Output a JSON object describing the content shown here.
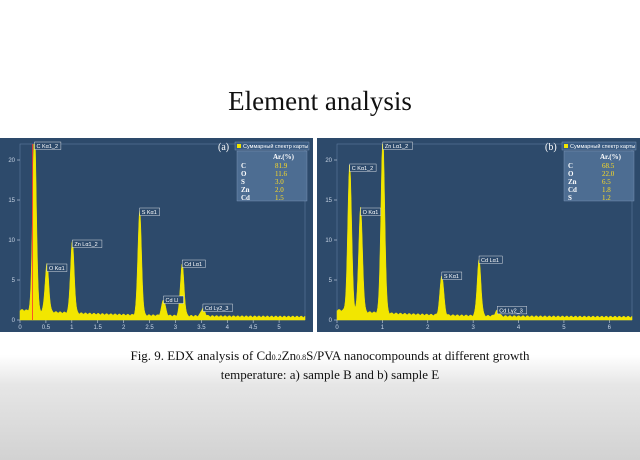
{
  "slide": {
    "title": "Element analysis",
    "caption_line1_pre": "Fig. 9. EDX analysis of Cd",
    "caption_sub1": "0.2",
    "caption_mid": "Zn",
    "caption_sub2": "0.8",
    "caption_line1_post": "S/PVA nanocompounds at different growth",
    "caption_line2": "temperature: a) sample B and b) sample E"
  },
  "chart_data": [
    {
      "type": "line",
      "panel_label": "(a)",
      "legend_title": "Суммарный спектр карты",
      "table_header": "Ar.(%)",
      "composition": [
        {
          "element": "C",
          "value": "81.9"
        },
        {
          "element": "O",
          "value": "11.6"
        },
        {
          "element": "S",
          "value": "3.0"
        },
        {
          "element": "Zn",
          "value": "2.0"
        },
        {
          "element": "Cd",
          "value": "1.5"
        }
      ],
      "xlim": [
        0,
        5.5
      ],
      "ylim": [
        0,
        22
      ],
      "x_ticks": [
        "0",
        "0.5",
        "1",
        "1.5",
        "2",
        "2.5",
        "3",
        "3.5",
        "4",
        "4.5",
        "5"
      ],
      "y_ticks": [
        "0",
        "5",
        "10",
        "15",
        "20"
      ],
      "peaks": [
        {
          "label": "C Kα1_2",
          "x": 0.28,
          "y": 23
        },
        {
          "label": "O Kα1",
          "x": 0.52,
          "y": 6
        },
        {
          "label": "Zn Lα1_2",
          "x": 1.01,
          "y": 9
        },
        {
          "label": "S Kα1",
          "x": 2.31,
          "y": 13
        },
        {
          "label": "Cd Lα1",
          "x": 3.13,
          "y": 6.5
        },
        {
          "label": "Cd Ll",
          "x": 2.77,
          "y": 2
        },
        {
          "label": "Cd Lγ2_3",
          "x": 3.53,
          "y": 1
        }
      ]
    },
    {
      "type": "line",
      "panel_label": "(b)",
      "legend_title": "Суммарный спектр карты",
      "table_header": "Ar.(%)",
      "composition": [
        {
          "element": "C",
          "value": "68.5"
        },
        {
          "element": "O",
          "value": "22.0"
        },
        {
          "element": "Zn",
          "value": "6.5"
        },
        {
          "element": "Cd",
          "value": "1.8"
        },
        {
          "element": "S",
          "value": "1.2"
        }
      ],
      "xlim": [
        0,
        6.5
      ],
      "ylim": [
        0,
        22
      ],
      "x_ticks": [
        "0",
        "1",
        "2",
        "3",
        "4",
        "5",
        "6"
      ],
      "y_ticks": [
        "0",
        "5",
        "10",
        "15",
        "20"
      ],
      "peaks": [
        {
          "label": "C Kα1_2",
          "x": 0.28,
          "y": 18.5
        },
        {
          "label": "O Kα1",
          "x": 0.52,
          "y": 13
        },
        {
          "label": "Zn Lα1_2",
          "x": 1.01,
          "y": 22
        },
        {
          "label": "S Kα1",
          "x": 2.31,
          "y": 5
        },
        {
          "label": "Cd Lα1",
          "x": 3.13,
          "y": 7
        },
        {
          "label": "Cd Lγ2_3",
          "x": 3.53,
          "y": 0.7
        }
      ]
    }
  ]
}
